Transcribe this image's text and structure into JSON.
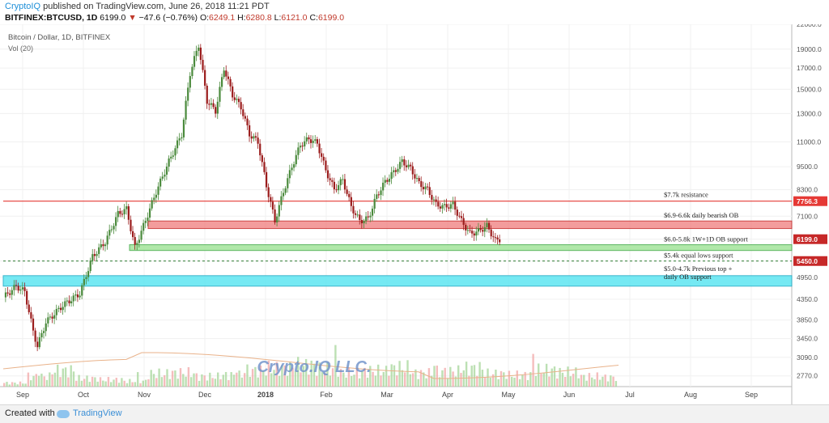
{
  "header": {
    "brand": "CryptoIQ",
    "published_text": "published on TradingView.com, June 26, 2018 11:21 PDT",
    "symbol": "BITFINEX:BTCUSD, 1D",
    "last": "6199.0",
    "arrow": "▼",
    "change": "−47.6 (−0.76%)",
    "o_label": "O:",
    "o_val": "6249.1",
    "h_label": "H:",
    "h_val": "6280.8",
    "l_label": "L:",
    "l_val": "6121.0",
    "c_label": "C:",
    "c_val": "6199.0"
  },
  "footer": {
    "created": "Created with",
    "brand": "TradingView"
  },
  "colors": {
    "up": "#4a8a3c",
    "down": "#9b1c1c",
    "resistance": "#e53935",
    "volume_up": "#a6d59a",
    "volume_down": "#f2a7a7"
  },
  "chart_data": {
    "type": "candlestick",
    "title": "Bitcoin / Dollar, 1D, BITFINEX",
    "subtitle": "Vol (20)",
    "watermark": "Crypto.IQ LLC.",
    "y_scale": "log",
    "ylim": [
      2600,
      22000
    ],
    "y_ticks": [
      22000,
      19000,
      17000,
      15000,
      13000,
      11000,
      9500,
      8300,
      7100,
      6200,
      5450,
      4950,
      4350,
      3850,
      3450,
      3090,
      2770
    ],
    "x_ticks": [
      "Sep",
      "Oct",
      "Nov",
      "Dec",
      "2018",
      "Feb",
      "Mar",
      "Apr",
      "May",
      "Jun",
      "Jul",
      "Aug",
      "Sep"
    ],
    "price_path": [
      {
        "t": 0,
        "p": 4400
      },
      {
        "t": 3,
        "p": 4700
      },
      {
        "t": 5,
        "p": 4550
      },
      {
        "t": 7,
        "p": 3600
      },
      {
        "t": 8,
        "p": 3300
      },
      {
        "t": 10,
        "p": 3800
      },
      {
        "t": 14,
        "p": 4200
      },
      {
        "t": 18,
        "p": 4500
      },
      {
        "t": 21,
        "p": 5600
      },
      {
        "t": 24,
        "p": 6100
      },
      {
        "t": 27,
        "p": 7200
      },
      {
        "t": 29,
        "p": 7400
      },
      {
        "t": 31,
        "p": 5900
      },
      {
        "t": 33,
        "p": 6700
      },
      {
        "t": 36,
        "p": 8200
      },
      {
        "t": 39,
        "p": 9800
      },
      {
        "t": 42,
        "p": 11500
      },
      {
        "t": 44,
        "p": 16500
      },
      {
        "t": 46,
        "p": 19500
      },
      {
        "t": 48,
        "p": 14000
      },
      {
        "t": 50,
        "p": 13200
      },
      {
        "t": 52,
        "p": 17000
      },
      {
        "t": 54,
        "p": 14500
      },
      {
        "t": 56,
        "p": 13500
      },
      {
        "t": 58,
        "p": 11500
      },
      {
        "t": 60,
        "p": 11000
      },
      {
        "t": 62,
        "p": 8500
      },
      {
        "t": 64,
        "p": 6900
      },
      {
        "t": 66,
        "p": 8200
      },
      {
        "t": 68,
        "p": 9500
      },
      {
        "t": 70,
        "p": 10800
      },
      {
        "t": 72,
        "p": 11200
      },
      {
        "t": 74,
        "p": 10900
      },
      {
        "t": 76,
        "p": 9300
      },
      {
        "t": 78,
        "p": 8300
      },
      {
        "t": 80,
        "p": 8800
      },
      {
        "t": 82,
        "p": 7500
      },
      {
        "t": 84,
        "p": 6900
      },
      {
        "t": 86,
        "p": 7000
      },
      {
        "t": 88,
        "p": 8000
      },
      {
        "t": 90,
        "p": 8700
      },
      {
        "t": 92,
        "p": 9200
      },
      {
        "t": 94,
        "p": 9800
      },
      {
        "t": 96,
        "p": 9400
      },
      {
        "t": 98,
        "p": 8600
      },
      {
        "t": 100,
        "p": 8300
      },
      {
        "t": 102,
        "p": 7600
      },
      {
        "t": 104,
        "p": 7500
      },
      {
        "t": 106,
        "p": 7600
      },
      {
        "t": 108,
        "p": 6900
      },
      {
        "t": 110,
        "p": 6400
      },
      {
        "t": 112,
        "p": 6500
      },
      {
        "t": 114,
        "p": 6700
      },
      {
        "t": 116,
        "p": 6150
      },
      {
        "t": 117,
        "p": 6199
      }
    ],
    "volume_level": [
      0.08,
      0.22,
      0.35,
      0.18,
      0.15,
      0.12,
      0.28,
      0.3,
      0.22,
      0.25,
      0.35,
      0.4,
      0.46,
      0.38,
      0.3,
      0.34,
      0.41,
      0.29,
      0.33,
      0.4,
      0.28,
      0.25,
      0.36,
      0.31,
      0.22,
      0.2
    ],
    "levels": [
      {
        "price": 7756.3,
        "label": "$7.7k resistance",
        "tag": "7756.3",
        "style": "line-red"
      },
      {
        "low": 6600,
        "high": 6900,
        "label": "$6.9-6.6k daily bearish OB",
        "style": "zone-red"
      },
      {
        "low": 5800,
        "high": 6000,
        "label": "$6.0-5.8k 1W+1D OB support",
        "style": "zone-green"
      },
      {
        "price": 5450.0,
        "label": "$5.4k equal lows support",
        "tag": "5450.0",
        "style": "line-green-dashed"
      },
      {
        "low": 4700,
        "high": 5000,
        "label": "$5.0-4.7k Previous top +",
        "label2": "daily OB support",
        "style": "zone-cyan"
      }
    ],
    "last_price_tag": "6199.0"
  }
}
